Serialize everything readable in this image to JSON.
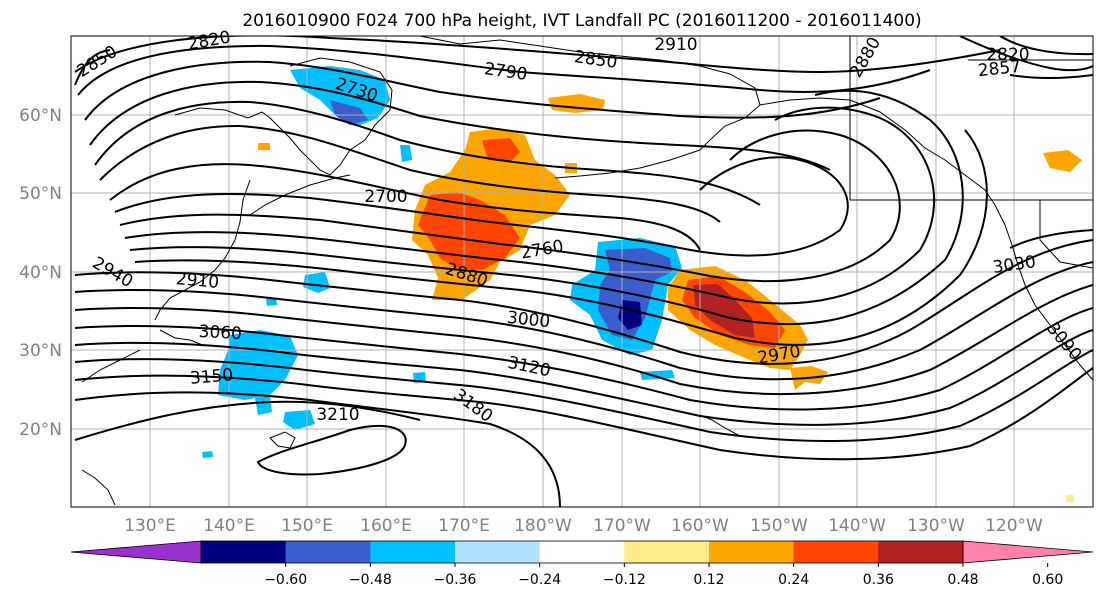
{
  "title": "2016010900 F024 700 hPa height, IVT Landfall PC (2016011200 - 2016011400)",
  "lat_labels": [
    "60°N",
    "50°N",
    "40°N",
    "30°N",
    "20°N"
  ],
  "lon_labels": [
    "130°E",
    "140°E",
    "150°E",
    "160°E",
    "170°E",
    "180°W",
    "170°W",
    "160°W",
    "150°W",
    "140°W",
    "130°W",
    "120°W"
  ],
  "contour_labels": [
    "2850",
    "2820",
    "2850",
    "2910",
    "2790",
    "2730",
    "2880",
    "2820",
    "2857",
    "2700",
    "2760",
    "2940",
    "2910",
    "2880",
    "3030",
    "3000",
    "3060",
    "2970",
    "3090",
    "3120",
    "3150",
    "3180",
    "3210"
  ],
  "colorbar": {
    "ticks": [
      "−0.60",
      "−0.48",
      "−0.36",
      "−0.24",
      "−0.12",
      "0.12",
      "0.24",
      "0.36",
      "0.48",
      "0.60"
    ],
    "colors": [
      "#9932cc",
      "#000080",
      "#3a5fcd",
      "#00bfff",
      "#b0e2ff",
      "#ffffff",
      "#ffec8b",
      "#ffa500",
      "#ff4500",
      "#b22222",
      "#ff82ab"
    ]
  }
}
